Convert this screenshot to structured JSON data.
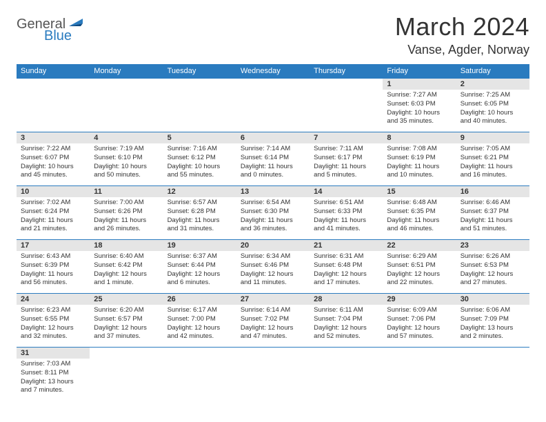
{
  "logo": {
    "general": "General",
    "blue": "Blue"
  },
  "title": "March 2024",
  "location": "Vanse, Agder, Norway",
  "colors": {
    "header_bg": "#2a7bbf",
    "header_text": "#ffffff",
    "daynum_bg": "#e5e5e5",
    "border": "#2a7bbf",
    "logo_blue": "#2a7bbf"
  },
  "day_headers": [
    "Sunday",
    "Monday",
    "Tuesday",
    "Wednesday",
    "Thursday",
    "Friday",
    "Saturday"
  ],
  "weeks": [
    [
      null,
      null,
      null,
      null,
      null,
      {
        "n": "1",
        "sunrise": "Sunrise: 7:27 AM",
        "sunset": "Sunset: 6:03 PM",
        "daylight": "Daylight: 10 hours and 35 minutes."
      },
      {
        "n": "2",
        "sunrise": "Sunrise: 7:25 AM",
        "sunset": "Sunset: 6:05 PM",
        "daylight": "Daylight: 10 hours and 40 minutes."
      }
    ],
    [
      {
        "n": "3",
        "sunrise": "Sunrise: 7:22 AM",
        "sunset": "Sunset: 6:07 PM",
        "daylight": "Daylight: 10 hours and 45 minutes."
      },
      {
        "n": "4",
        "sunrise": "Sunrise: 7:19 AM",
        "sunset": "Sunset: 6:10 PM",
        "daylight": "Daylight: 10 hours and 50 minutes."
      },
      {
        "n": "5",
        "sunrise": "Sunrise: 7:16 AM",
        "sunset": "Sunset: 6:12 PM",
        "daylight": "Daylight: 10 hours and 55 minutes."
      },
      {
        "n": "6",
        "sunrise": "Sunrise: 7:14 AM",
        "sunset": "Sunset: 6:14 PM",
        "daylight": "Daylight: 11 hours and 0 minutes."
      },
      {
        "n": "7",
        "sunrise": "Sunrise: 7:11 AM",
        "sunset": "Sunset: 6:17 PM",
        "daylight": "Daylight: 11 hours and 5 minutes."
      },
      {
        "n": "8",
        "sunrise": "Sunrise: 7:08 AM",
        "sunset": "Sunset: 6:19 PM",
        "daylight": "Daylight: 11 hours and 10 minutes."
      },
      {
        "n": "9",
        "sunrise": "Sunrise: 7:05 AM",
        "sunset": "Sunset: 6:21 PM",
        "daylight": "Daylight: 11 hours and 16 minutes."
      }
    ],
    [
      {
        "n": "10",
        "sunrise": "Sunrise: 7:02 AM",
        "sunset": "Sunset: 6:24 PM",
        "daylight": "Daylight: 11 hours and 21 minutes."
      },
      {
        "n": "11",
        "sunrise": "Sunrise: 7:00 AM",
        "sunset": "Sunset: 6:26 PM",
        "daylight": "Daylight: 11 hours and 26 minutes."
      },
      {
        "n": "12",
        "sunrise": "Sunrise: 6:57 AM",
        "sunset": "Sunset: 6:28 PM",
        "daylight": "Daylight: 11 hours and 31 minutes."
      },
      {
        "n": "13",
        "sunrise": "Sunrise: 6:54 AM",
        "sunset": "Sunset: 6:30 PM",
        "daylight": "Daylight: 11 hours and 36 minutes."
      },
      {
        "n": "14",
        "sunrise": "Sunrise: 6:51 AM",
        "sunset": "Sunset: 6:33 PM",
        "daylight": "Daylight: 11 hours and 41 minutes."
      },
      {
        "n": "15",
        "sunrise": "Sunrise: 6:48 AM",
        "sunset": "Sunset: 6:35 PM",
        "daylight": "Daylight: 11 hours and 46 minutes."
      },
      {
        "n": "16",
        "sunrise": "Sunrise: 6:46 AM",
        "sunset": "Sunset: 6:37 PM",
        "daylight": "Daylight: 11 hours and 51 minutes."
      }
    ],
    [
      {
        "n": "17",
        "sunrise": "Sunrise: 6:43 AM",
        "sunset": "Sunset: 6:39 PM",
        "daylight": "Daylight: 11 hours and 56 minutes."
      },
      {
        "n": "18",
        "sunrise": "Sunrise: 6:40 AM",
        "sunset": "Sunset: 6:42 PM",
        "daylight": "Daylight: 12 hours and 1 minute."
      },
      {
        "n": "19",
        "sunrise": "Sunrise: 6:37 AM",
        "sunset": "Sunset: 6:44 PM",
        "daylight": "Daylight: 12 hours and 6 minutes."
      },
      {
        "n": "20",
        "sunrise": "Sunrise: 6:34 AM",
        "sunset": "Sunset: 6:46 PM",
        "daylight": "Daylight: 12 hours and 11 minutes."
      },
      {
        "n": "21",
        "sunrise": "Sunrise: 6:31 AM",
        "sunset": "Sunset: 6:48 PM",
        "daylight": "Daylight: 12 hours and 17 minutes."
      },
      {
        "n": "22",
        "sunrise": "Sunrise: 6:29 AM",
        "sunset": "Sunset: 6:51 PM",
        "daylight": "Daylight: 12 hours and 22 minutes."
      },
      {
        "n": "23",
        "sunrise": "Sunrise: 6:26 AM",
        "sunset": "Sunset: 6:53 PM",
        "daylight": "Daylight: 12 hours and 27 minutes."
      }
    ],
    [
      {
        "n": "24",
        "sunrise": "Sunrise: 6:23 AM",
        "sunset": "Sunset: 6:55 PM",
        "daylight": "Daylight: 12 hours and 32 minutes."
      },
      {
        "n": "25",
        "sunrise": "Sunrise: 6:20 AM",
        "sunset": "Sunset: 6:57 PM",
        "daylight": "Daylight: 12 hours and 37 minutes."
      },
      {
        "n": "26",
        "sunrise": "Sunrise: 6:17 AM",
        "sunset": "Sunset: 7:00 PM",
        "daylight": "Daylight: 12 hours and 42 minutes."
      },
      {
        "n": "27",
        "sunrise": "Sunrise: 6:14 AM",
        "sunset": "Sunset: 7:02 PM",
        "daylight": "Daylight: 12 hours and 47 minutes."
      },
      {
        "n": "28",
        "sunrise": "Sunrise: 6:11 AM",
        "sunset": "Sunset: 7:04 PM",
        "daylight": "Daylight: 12 hours and 52 minutes."
      },
      {
        "n": "29",
        "sunrise": "Sunrise: 6:09 AM",
        "sunset": "Sunset: 7:06 PM",
        "daylight": "Daylight: 12 hours and 57 minutes."
      },
      {
        "n": "30",
        "sunrise": "Sunrise: 6:06 AM",
        "sunset": "Sunset: 7:09 PM",
        "daylight": "Daylight: 13 hours and 2 minutes."
      }
    ],
    [
      {
        "n": "31",
        "sunrise": "Sunrise: 7:03 AM",
        "sunset": "Sunset: 8:11 PM",
        "daylight": "Daylight: 13 hours and 7 minutes."
      },
      null,
      null,
      null,
      null,
      null,
      null
    ]
  ]
}
